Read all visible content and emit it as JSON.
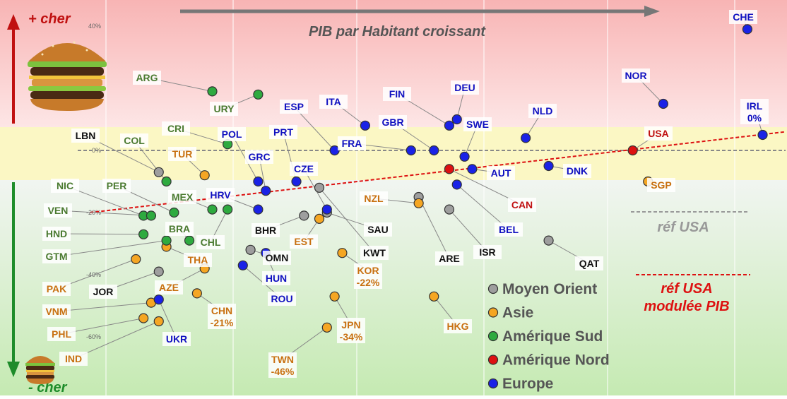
{
  "header": {
    "more_expensive": "+ cher",
    "less_expensive": "- cher",
    "gdp_arrow_label": "PIB par Habitant croissant"
  },
  "chart_data": {
    "type": "scatter",
    "title": "",
    "xlabel": "PIB par Habitant croissant",
    "ylabel": "",
    "y_unit": "%",
    "y_ticks": [
      "40%",
      "0%",
      "-20%",
      "-40%",
      "-60%"
    ],
    "ylim": [
      -80,
      42
    ],
    "x_scale": "relative GDP rank (unlabeled, 0-100)",
    "xlim": [
      0,
      100
    ],
    "grid": true,
    "legend_position": "bottom-right",
    "series": [
      {
        "name": "Moyen Orient",
        "color": "#9e9e9e",
        "points": [
          {
            "label": "LBN",
            "x": 18,
            "y": -7
          },
          {
            "label": "JOR",
            "x": 18,
            "y": -39
          },
          {
            "label": "BHR",
            "x": 37,
            "y": -21
          },
          {
            "label": "OMN",
            "x": 30,
            "y": -32
          },
          {
            "label": "SAU",
            "x": 40,
            "y": -20
          },
          {
            "label": "KWT",
            "x": 39,
            "y": -12
          },
          {
            "label": "ARE",
            "x": 52,
            "y": -15
          },
          {
            "label": "ISR",
            "x": 56,
            "y": -19
          },
          {
            "label": "QAT",
            "x": 69,
            "y": -29
          }
        ]
      },
      {
        "name": "Asie",
        "color": "#f5a623",
        "points": [
          {
            "label": "TUR",
            "x": 24,
            "y": -8
          },
          {
            "label": "THA",
            "x": 19,
            "y": -31
          },
          {
            "label": "AZE",
            "x": 24,
            "y": -38
          },
          {
            "label": "CHN",
            "x": 23,
            "y": -46,
            "value_label": "-21%"
          },
          {
            "label": "PAK",
            "x": 15,
            "y": -35
          },
          {
            "label": "VNM",
            "x": 17,
            "y": -49
          },
          {
            "label": "PHL",
            "x": 16,
            "y": -54
          },
          {
            "label": "IND",
            "x": 18,
            "y": -55
          },
          {
            "label": "EST",
            "x": 39,
            "y": -22
          },
          {
            "label": "KOR",
            "x": 42,
            "y": -33,
            "value_label": "-22%"
          },
          {
            "label": "JPN",
            "x": 41,
            "y": -47,
            "value_label": "-34%"
          },
          {
            "label": "TWN",
            "x": 40,
            "y": -57,
            "value_label": "-46%"
          },
          {
            "label": "NZL",
            "x": 52,
            "y": -17
          },
          {
            "label": "HKG",
            "x": 54,
            "y": -47
          },
          {
            "label": "SGP",
            "x": 82,
            "y": -10
          }
        ]
      },
      {
        "name": "Amérique Sud",
        "color": "#2eaa3f",
        "points": [
          {
            "label": "ARG",
            "x": 25,
            "y": 19
          },
          {
            "label": "URY",
            "x": 31,
            "y": 18
          },
          {
            "label": "CRI",
            "x": 27,
            "y": 2
          },
          {
            "label": "COL",
            "x": 19,
            "y": -10
          },
          {
            "label": "PER",
            "x": 20,
            "y": -20
          },
          {
            "label": "NIC",
            "x": 16,
            "y": -21
          },
          {
            "label": "VEN",
            "x": 17,
            "y": -21
          },
          {
            "label": "HND",
            "x": 16,
            "y": -27
          },
          {
            "label": "GTM",
            "x": 19,
            "y": -29
          },
          {
            "label": "BRA",
            "x": 22,
            "y": -29
          },
          {
            "label": "MEX",
            "x": 25,
            "y": -19
          },
          {
            "label": "CHL",
            "x": 27,
            "y": -19
          }
        ]
      },
      {
        "name": "Amérique Nord",
        "color": "#dd1111",
        "points": [
          {
            "label": "USA",
            "x": 80,
            "y": 0
          },
          {
            "label": "CAN",
            "x": 56,
            "y": -6
          }
        ]
      },
      {
        "name": "Europe",
        "color": "#1a22e6",
        "points": [
          {
            "label": "CHE",
            "x": 95,
            "y": 39
          },
          {
            "label": "NOR",
            "x": 84,
            "y": 15
          },
          {
            "label": "IRL",
            "x": 97,
            "y": 5,
            "value_label": "0%"
          },
          {
            "label": "NLD",
            "x": 66,
            "y": 4
          },
          {
            "label": "DNK",
            "x": 69,
            "y": -5
          },
          {
            "label": "FIN",
            "x": 56,
            "y": 8
          },
          {
            "label": "DEU",
            "x": 57,
            "y": 10
          },
          {
            "label": "SWE",
            "x": 58,
            "y": -2
          },
          {
            "label": "AUT",
            "x": 59,
            "y": -6
          },
          {
            "label": "BEL",
            "x": 57,
            "y": -11
          },
          {
            "label": "GBR",
            "x": 54,
            "y": 0
          },
          {
            "label": "FRA",
            "x": 51,
            "y": 0
          },
          {
            "label": "ITA",
            "x": 45,
            "y": 8
          },
          {
            "label": "ESP",
            "x": 41,
            "y": 0
          },
          {
            "label": "PRT",
            "x": 36,
            "y": -10
          },
          {
            "label": "POL",
            "x": 31,
            "y": -10
          },
          {
            "label": "GRC",
            "x": 32,
            "y": -13
          },
          {
            "label": "CZE",
            "x": 40,
            "y": -19
          },
          {
            "label": "HRV",
            "x": 31,
            "y": -19
          },
          {
            "label": "HUN",
            "x": 32,
            "y": -33
          },
          {
            "label": "ROU",
            "x": 29,
            "y": -37
          },
          {
            "label": "UKR",
            "x": 18,
            "y": -48
          }
        ]
      }
    ],
    "reference_lines": [
      {
        "name": "réf USA",
        "type": "horizontal",
        "y": 0,
        "color": "#888888"
      },
      {
        "name": "réf USA modulée PIB",
        "type": "trend",
        "points": [
          [
            9,
            -20
          ],
          [
            100,
            6
          ]
        ],
        "color": "#dd1111"
      }
    ],
    "annotation_colors": {
      "green_text": "#4a7a30",
      "orange_text": "#c87010",
      "red_text": "#c01010",
      "blue_text": "#1010c0",
      "black_text": "#111111"
    }
  }
}
